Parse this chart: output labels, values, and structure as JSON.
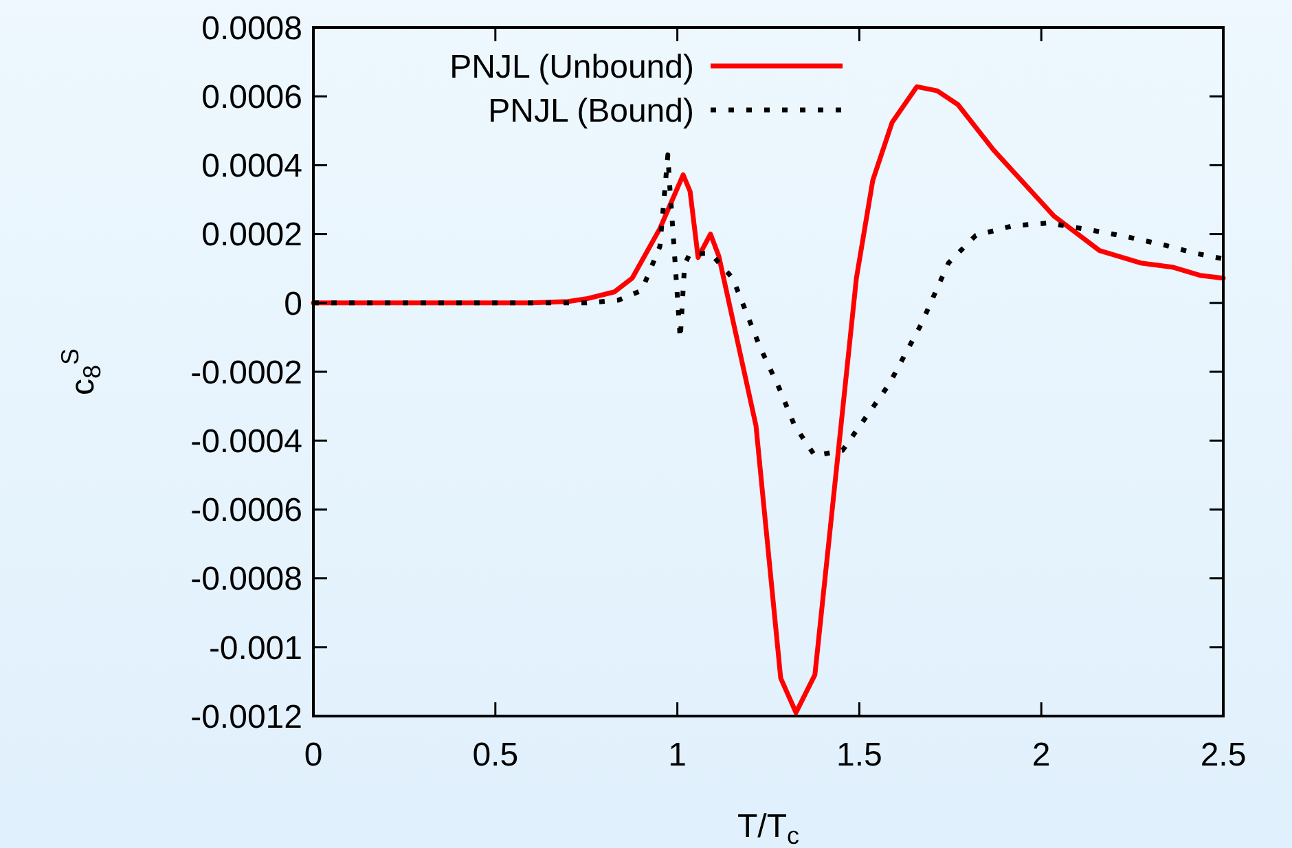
{
  "chart_data": {
    "type": "line",
    "xlabel": "T/T$_{c}$",
    "ylabel": "c$_{8}$$^{S}$",
    "xlim": [
      0,
      2.5
    ],
    "xticks": [
      0,
      0.5,
      1,
      1.5,
      2,
      2.5
    ],
    "ylim": [
      -0.0012,
      0.0008
    ],
    "yticks": [
      -0.0012,
      -0.001,
      -0.0008,
      -0.0006,
      -0.0004,
      -0.0002,
      0,
      0.0002,
      0.0004,
      0.0006,
      0.0008
    ],
    "grid": false,
    "legend": "top",
    "series": [
      {
        "name": "PNJL (Unbound)",
        "color": "#ff0000",
        "line_style": "solid",
        "x": [
          0,
          0.3,
          0.6,
          0.7,
          0.75,
          0.827,
          0.876,
          0.952,
          1.016,
          1.035,
          1.057,
          1.091,
          1.114,
          1.216,
          1.284,
          1.326,
          1.378,
          1.443,
          1.492,
          1.537,
          1.59,
          1.658,
          1.714,
          1.771,
          1.869,
          2.035,
          2.16,
          2.273,
          2.36,
          2.436,
          2.5
        ],
        "values": [
          0,
          0,
          0,
          4e-06,
          1.2e-05,
          3.2e-05,
          7.2e-05,
          0.000216,
          0.000372,
          0.000324,
          0.000132,
          0.0002,
          0.000136,
          -0.000356,
          -0.00109,
          -0.00119,
          -0.00108,
          -0.000424,
          7.2e-05,
          0.000356,
          0.000524,
          0.000628,
          0.000616,
          0.000576,
          0.000444,
          0.000252,
          0.000152,
          0.000116,
          0.000104,
          8e-05,
          7.2e-05
        ]
      },
      {
        "name": "PNJL (Bound)",
        "color": "#000000",
        "line_style": "dotted",
        "x": [
          0,
          0.3,
          0.6,
          0.75,
          0.838,
          0.902,
          0.952,
          0.974,
          0.978,
          0.989,
          1.008,
          1.02,
          1.035,
          1.091,
          1.152,
          1.227,
          1.28,
          1.322,
          1.378,
          1.454,
          1.582,
          1.669,
          1.745,
          1.82,
          1.922,
          2.02,
          2.134,
          2.236,
          2.338,
          2.424,
          2.5
        ],
        "values": [
          0,
          0,
          0,
          0,
          8e-06,
          3.6e-05,
          0.000164,
          0.00043,
          0.000356,
          0.000192,
          -0.000104,
          0.000112,
          0.000144,
          0.000144,
          7.2e-05,
          -0.000128,
          -0.000248,
          -0.000356,
          -0.000444,
          -0.000428,
          -0.000236,
          -6.4e-05,
          0.000116,
          0.000196,
          0.000224,
          0.000232,
          0.000212,
          0.000192,
          0.000168,
          0.000144,
          0.000128
        ]
      }
    ]
  }
}
